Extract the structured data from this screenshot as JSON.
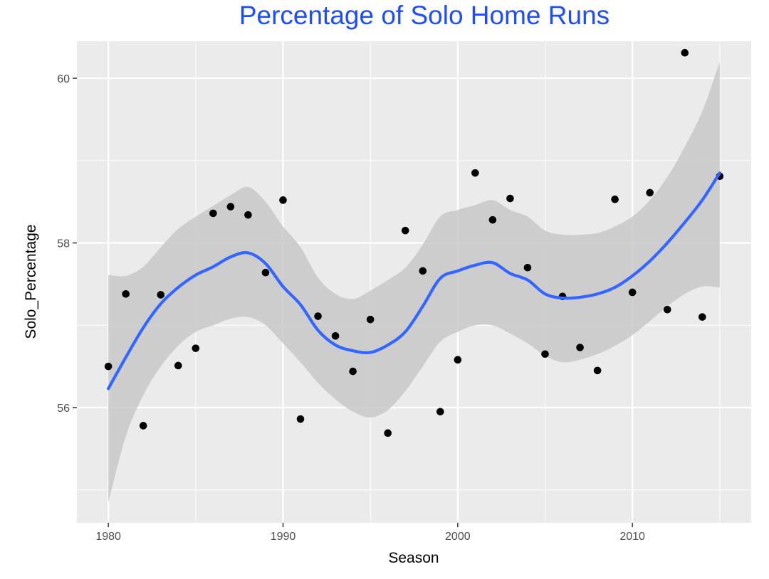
{
  "chart_data": {
    "type": "scatter",
    "title": "Percentage of Solo Home Runs",
    "xlabel": "Season",
    "ylabel": "Solo_Percentage",
    "xlim": [
      1978.2,
      2016.8
    ],
    "ylim": [
      54.6,
      60.45
    ],
    "x_ticks": [
      1980,
      1990,
      2000,
      2010
    ],
    "x_tick_labels": [
      "1980",
      "1990",
      "2000",
      "2010"
    ],
    "y_ticks": [
      56,
      58,
      60
    ],
    "y_tick_labels": [
      "56",
      "58",
      "60"
    ],
    "grid": true,
    "legend": "none",
    "colors": {
      "title": "#1f4cff",
      "panel": "#ebebeb",
      "grid": "#ffffff",
      "points": "#000000",
      "smooth_line": "#3366ff",
      "confidence_band": "#c8c8c8"
    },
    "points": [
      {
        "x": 1980,
        "y": 56.5
      },
      {
        "x": 1981,
        "y": 57.38
      },
      {
        "x": 1982,
        "y": 55.78
      },
      {
        "x": 1983,
        "y": 57.37
      },
      {
        "x": 1984,
        "y": 56.51
      },
      {
        "x": 1985,
        "y": 56.72
      },
      {
        "x": 1986,
        "y": 58.36
      },
      {
        "x": 1987,
        "y": 58.44
      },
      {
        "x": 1988,
        "y": 58.34
      },
      {
        "x": 1989,
        "y": 57.64
      },
      {
        "x": 1990,
        "y": 58.52
      },
      {
        "x": 1991,
        "y": 55.86
      },
      {
        "x": 1992,
        "y": 57.11
      },
      {
        "x": 1993,
        "y": 56.87
      },
      {
        "x": 1994,
        "y": 56.44
      },
      {
        "x": 1995,
        "y": 57.07
      },
      {
        "x": 1996,
        "y": 55.69
      },
      {
        "x": 1997,
        "y": 58.15
      },
      {
        "x": 1998,
        "y": 57.66
      },
      {
        "x": 1999,
        "y": 55.95
      },
      {
        "x": 2000,
        "y": 56.58
      },
      {
        "x": 2001,
        "y": 58.85
      },
      {
        "x": 2002,
        "y": 58.28
      },
      {
        "x": 2003,
        "y": 58.54
      },
      {
        "x": 2004,
        "y": 57.7
      },
      {
        "x": 2005,
        "y": 56.65
      },
      {
        "x": 2006,
        "y": 57.35
      },
      {
        "x": 2007,
        "y": 56.73
      },
      {
        "x": 2008,
        "y": 56.45
      },
      {
        "x": 2009,
        "y": 58.53
      },
      {
        "x": 2010,
        "y": 57.4
      },
      {
        "x": 2011,
        "y": 58.61
      },
      {
        "x": 2012,
        "y": 57.19
      },
      {
        "x": 2013,
        "y": 60.31
      },
      {
        "x": 2014,
        "y": 57.1
      },
      {
        "x": 2015,
        "y": 58.81
      }
    ],
    "smooth": {
      "x": [
        1980,
        1981,
        1982,
        1983,
        1984,
        1985,
        1986,
        1987,
        1988,
        1989,
        1990,
        1991,
        1992,
        1993,
        1994,
        1995,
        1996,
        1997,
        1998,
        1999,
        2000,
        2001,
        2002,
        2003,
        2004,
        2005,
        2006,
        2007,
        2008,
        2009,
        2010,
        2011,
        2012,
        2013,
        2014,
        2015
      ],
      "y": [
        56.23,
        56.61,
        56.97,
        57.26,
        57.46,
        57.61,
        57.71,
        57.83,
        57.88,
        57.75,
        57.47,
        57.25,
        56.94,
        56.76,
        56.69,
        56.67,
        56.76,
        56.92,
        57.23,
        57.57,
        57.66,
        57.73,
        57.76,
        57.63,
        57.55,
        57.38,
        57.33,
        57.34,
        57.38,
        57.46,
        57.6,
        57.78,
        58.0,
        58.25,
        58.52,
        58.85
      ],
      "lower": [
        54.85,
        55.65,
        56.15,
        56.5,
        56.75,
        56.92,
        57.0,
        57.08,
        57.1,
        57.0,
        56.78,
        56.55,
        56.3,
        56.1,
        55.95,
        55.88,
        55.97,
        56.2,
        56.5,
        56.8,
        56.92,
        57.0,
        57.0,
        56.9,
        56.78,
        56.63,
        56.55,
        56.58,
        56.65,
        56.75,
        56.88,
        57.05,
        57.23,
        57.38,
        57.47,
        57.46
      ],
      "upper": [
        57.61,
        57.6,
        57.71,
        57.95,
        58.17,
        58.32,
        58.45,
        58.58,
        58.68,
        58.5,
        58.2,
        57.95,
        57.58,
        57.38,
        57.32,
        57.42,
        57.55,
        57.7,
        57.98,
        58.32,
        58.4,
        58.46,
        58.52,
        58.4,
        58.32,
        58.15,
        58.1,
        58.1,
        58.12,
        58.2,
        58.32,
        58.52,
        58.8,
        59.17,
        59.6,
        60.2
      ]
    }
  }
}
